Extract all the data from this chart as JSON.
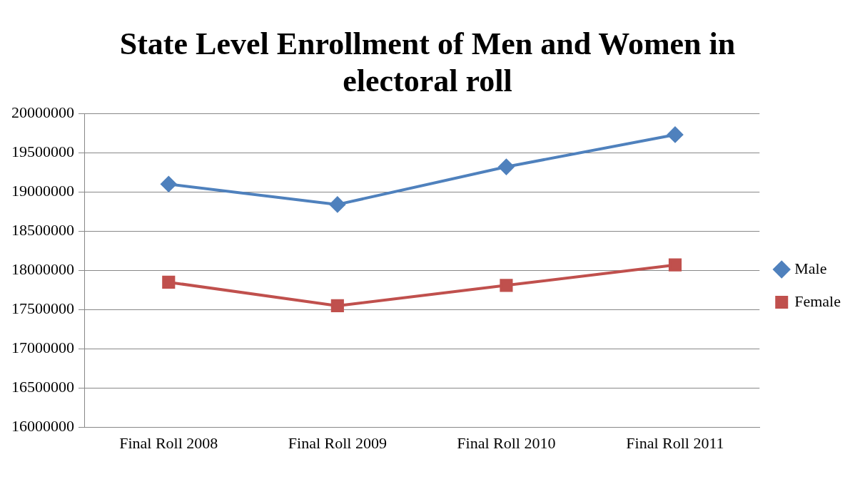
{
  "chart_data": {
    "type": "line",
    "title": "State Level Enrollment of Men and Women in electoral roll",
    "categories": [
      "Final Roll 2008",
      "Final Roll 2009",
      "Final Roll 2010",
      "Final Roll 2011"
    ],
    "series": [
      {
        "name": "Male",
        "color": "#4f81bd",
        "marker": "diamond",
        "values": [
          19100000,
          18840000,
          19320000,
          19730000
        ]
      },
      {
        "name": "Female",
        "color": "#c0504d",
        "marker": "square",
        "values": [
          17850000,
          17550000,
          17810000,
          18070000
        ]
      }
    ],
    "ylim": [
      16000000,
      20000000
    ],
    "yticks": [
      16000000,
      16500000,
      17000000,
      17500000,
      18000000,
      18500000,
      19000000,
      19500000,
      20000000
    ],
    "grid": "y",
    "legend": "right",
    "line_style": "solid"
  }
}
